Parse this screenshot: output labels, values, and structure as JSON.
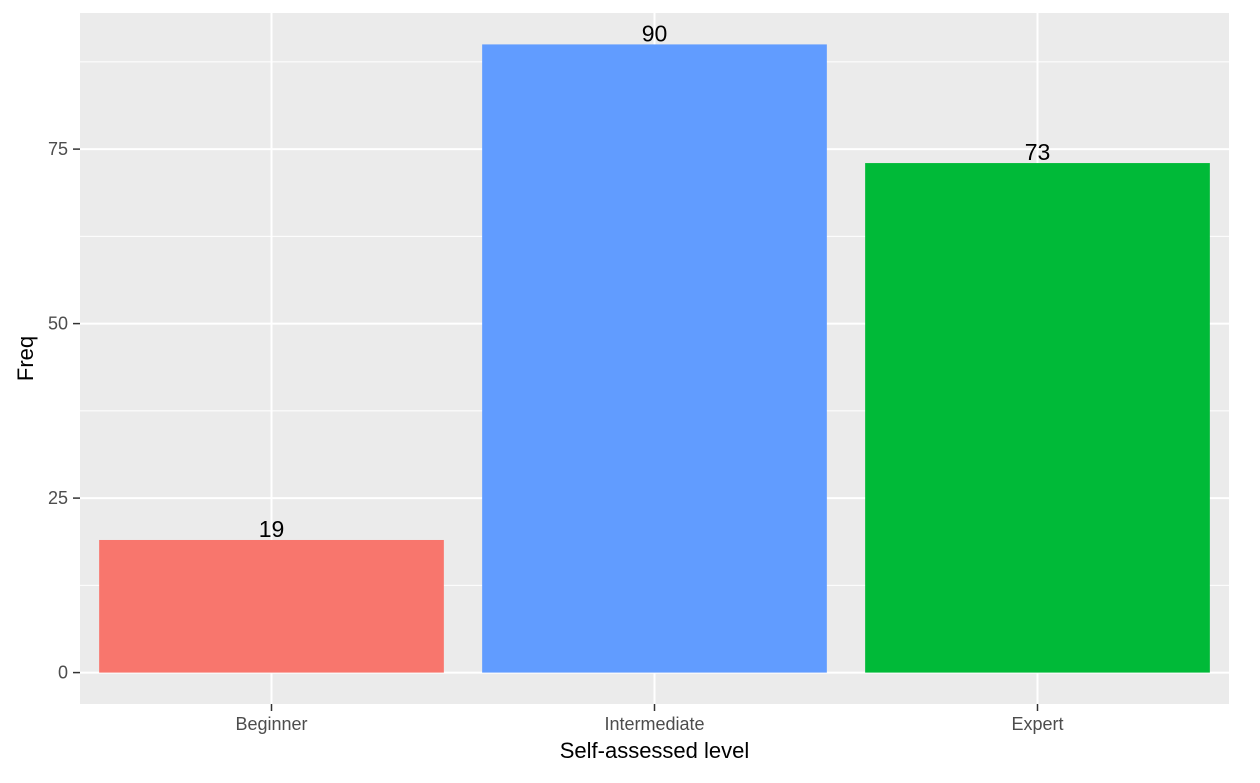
{
  "chart_data": {
    "type": "bar",
    "title": "",
    "xlabel": "Self-assessed level",
    "ylabel": "Freq",
    "categories": [
      "Beginner",
      "Intermediate",
      "Expert"
    ],
    "values": [
      19,
      90,
      73
    ],
    "data_labels": [
      "19",
      "90",
      "73"
    ],
    "colors": [
      "#F8766D",
      "#619CFF",
      "#00BA38"
    ],
    "ylim": [
      -4.5,
      94.5
    ],
    "yticks": [
      0,
      25,
      50,
      75
    ],
    "ytick_labels": [
      "0",
      "25",
      "50",
      "75"
    ],
    "grid": true,
    "legend": "none",
    "panel_background": "#EBEBEB",
    "grid_color": "#FFFFFF"
  }
}
